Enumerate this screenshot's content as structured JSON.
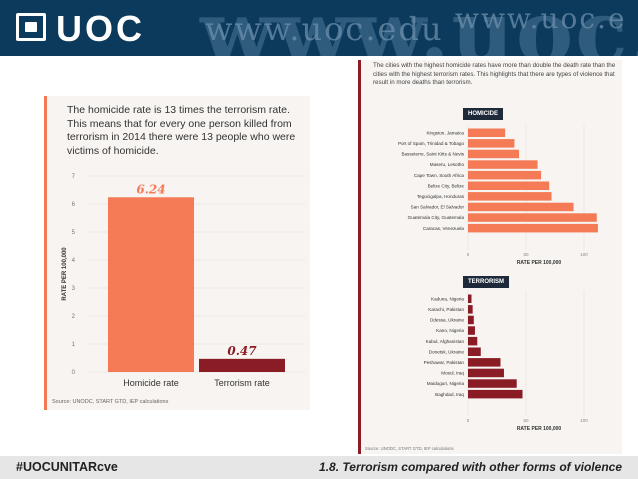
{
  "header": {
    "logo_text": "UOC",
    "watermark_big": "www.uoc.ed",
    "watermark_url_1": "www.uoc.edu",
    "watermark_url_2": "www.uoc.e",
    "colors": {
      "background": "#0b3a5c",
      "text": "#ffffff"
    }
  },
  "left_chart": {
    "title": "The homicide rate is 13 times the terrorism rate. This means that for every one person killed from terrorism in 2014 there were 13 people who were victims of homicide.",
    "source": "Source: UNODC, START GTD, IEP calculations"
  },
  "right_chart": {
    "title": "The cities with the highest homicide rates have more than double the death rate than the cities with the highest terrorism rates. This highlights that there are types of violence that result in more deaths than terrorism.",
    "homicide_tag": "HOMICIDE",
    "terrorism_tag": "TERRORISM",
    "source": "Source: UNODC, START GTD, IEP calculations"
  },
  "chart_data": [
    {
      "type": "bar",
      "title": "The homicide rate is 13 times the terrorism rate.",
      "categories": [
        "Homicide rate",
        "Terrorism rate"
      ],
      "values": [
        6.24,
        0.47
      ],
      "value_labels": [
        "6.24",
        "0.47"
      ],
      "ylabel": "RATE PER 100,000",
      "ylim": [
        0,
        7
      ],
      "yticks": [
        "0",
        "1",
        "2",
        "3",
        "4",
        "5",
        "6",
        "7"
      ],
      "colors": [
        "#f47b55",
        "#8a1c26"
      ]
    },
    {
      "type": "bar",
      "orientation": "horizontal",
      "title": "HOMICIDE",
      "categories": [
        "Kingston, Jamaica",
        "Port of Spain, Trinidad & Tobago",
        "Basseterre, Saint Kitts & Nevis",
        "Maseru, Lesotho",
        "Cape Town, South Africa",
        "Belize City, Belize",
        "Tegucigalpa, Honduras",
        "San Salvador, El Salvador",
        "Guatemala City, Guatemala",
        "Caracas, Venezuela"
      ],
      "values": [
        32,
        40,
        44,
        60,
        63,
        70,
        72,
        91,
        111,
        112
      ],
      "xlabel": "RATE PER 100,000",
      "xlim": [
        0,
        125
      ],
      "xticks": [
        "0",
        "50",
        "100"
      ],
      "color": "#f47b55"
    },
    {
      "type": "bar",
      "orientation": "horizontal",
      "title": "TERRORISM",
      "categories": [
        "Kaduna, Nigeria",
        "Karachi, Pakistan",
        "Odessa, Ukraine",
        "Kano, Nigeria",
        "Kabul, Afghanistan",
        "Donetsk, Ukraine",
        "Peshawar, Pakistan",
        "Mosul, Iraq",
        "Maiduguri, Nigeria",
        "Baghdad, Iraq"
      ],
      "values": [
        3,
        4,
        5,
        6,
        8,
        11,
        28,
        31,
        42,
        47
      ],
      "xlabel": "RATE PER 100,000",
      "xlim": [
        0,
        125
      ],
      "xticks": [
        "0",
        "50",
        "100"
      ],
      "color": "#8a1c26"
    }
  ],
  "footer": {
    "hashtag": "#UOCUNITARcve",
    "subtitle": "1.8. Terrorism compared with other forms of violence"
  }
}
